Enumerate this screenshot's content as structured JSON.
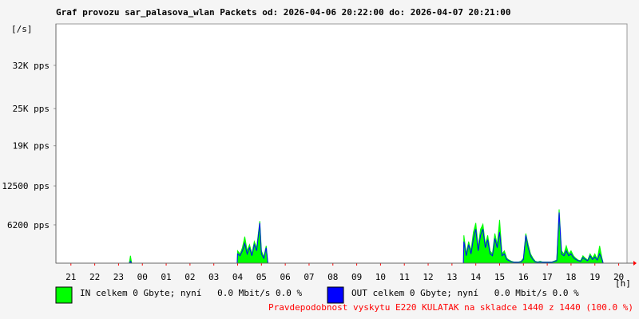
{
  "chart_data": {
    "type": "area-line",
    "title": "Graf provozu sar_palasova_wlan Packets od: 2026-04-06 20:22:00 do: 2026-04-07 20:21:00",
    "y_label": "[/s]",
    "x_label": "[h]",
    "footer": "Pravdepodobnost vyskytu E220 KULATAK na skladce 1440 z 1440 (100.0 %)",
    "xlim": [
      20.37,
      44.35
    ],
    "ylim": [
      0,
      38700
    ],
    "xticks": [
      21,
      22,
      23,
      {
        "value": 24,
        "label": "00"
      },
      {
        "value": 25,
        "label": "01"
      },
      {
        "value": 26,
        "label": "02"
      },
      {
        "value": 27,
        "label": "03"
      },
      {
        "value": 28,
        "label": "04"
      },
      {
        "value": 29,
        "label": "05"
      },
      {
        "value": 30,
        "label": "06"
      },
      {
        "value": 31,
        "label": "07"
      },
      {
        "value": 32,
        "label": "08"
      },
      {
        "value": 33,
        "label": "09"
      },
      {
        "value": 34,
        "label": "10"
      },
      {
        "value": 35,
        "label": "11"
      },
      {
        "value": 36,
        "label": "12"
      },
      {
        "value": 37,
        "label": "13"
      },
      {
        "value": 38,
        "label": "14"
      },
      {
        "value": 39,
        "label": "15"
      },
      {
        "value": 40,
        "label": "16"
      },
      {
        "value": 41,
        "label": "17"
      },
      {
        "value": 42,
        "label": "18"
      },
      {
        "value": 43,
        "label": "19"
      },
      {
        "value": 44,
        "label": "20"
      }
    ],
    "yticks": [
      {
        "value": 6200,
        "label": "6200 pps"
      },
      {
        "value": 12500,
        "label": "12500 pps"
      },
      {
        "value": 19000,
        "label": "19K pps"
      },
      {
        "value": 25000,
        "label": "25K pps"
      },
      {
        "value": 32000,
        "label": "32K pps"
      }
    ],
    "x": [
      20.37,
      23.45,
      23.5,
      23.55,
      27.98,
      28.0,
      28.1,
      28.2,
      28.3,
      28.4,
      28.5,
      28.6,
      28.7,
      28.8,
      28.93,
      29.0,
      29.1,
      29.2,
      29.27,
      37.48,
      37.5,
      37.6,
      37.7,
      37.8,
      37.9,
      38.0,
      38.1,
      38.2,
      38.3,
      38.4,
      38.5,
      38.6,
      38.7,
      38.8,
      38.9,
      39.0,
      39.1,
      39.2,
      39.3,
      39.4,
      39.5,
      39.6,
      39.7,
      39.8,
      39.9,
      40.0,
      40.1,
      40.2,
      40.3,
      40.4,
      40.5,
      40.6,
      40.7,
      40.8,
      41.2,
      41.4,
      41.5,
      41.6,
      41.7,
      41.8,
      41.9,
      42.0,
      42.1,
      42.2,
      42.3,
      42.4,
      42.5,
      42.6,
      42.7,
      42.8,
      42.9,
      43.0,
      43.1,
      43.2,
      43.3,
      43.35,
      44.35
    ],
    "series": [
      {
        "name": "IN celkem 0 Gbyte; nyní   0.0 Mbit/s 0.0 %",
        "color": "#00ff00",
        "style": "area",
        "values": [
          0,
          0,
          1200,
          0,
          0,
          2000,
          1500,
          2500,
          4300,
          2000,
          3000,
          1500,
          3500,
          2500,
          6800,
          2000,
          1000,
          2800,
          0,
          0,
          4500,
          1500,
          3500,
          2000,
          5000,
          6500,
          2500,
          5500,
          6300,
          3000,
          4500,
          2000,
          1500,
          4800,
          3000,
          7000,
          1500,
          2000,
          800,
          500,
          300,
          200,
          200,
          200,
          300,
          800,
          4800,
          3000,
          1500,
          800,
          300,
          200,
          300,
          200,
          200,
          500,
          8700,
          2000,
          1500,
          2800,
          1500,
          2000,
          1200,
          800,
          500,
          400,
          1200,
          800,
          500,
          1500,
          800,
          1500,
          600,
          2800,
          800,
          0,
          0
        ]
      },
      {
        "name": "OUT celkem 0 Gbyte; nyní   0.0 Mbit/s 0.0 %",
        "color": "#0000ff",
        "style": "line",
        "values": [
          0,
          0,
          300,
          0,
          0,
          1500,
          1200,
          2000,
          3200,
          1500,
          2500,
          1200,
          3000,
          2000,
          6500,
          1500,
          800,
          2500,
          0,
          0,
          3500,
          1200,
          3000,
          1500,
          4000,
          5500,
          2000,
          4500,
          5500,
          2500,
          3800,
          1500,
          1200,
          4000,
          2500,
          5000,
          1200,
          1500,
          600,
          400,
          200,
          150,
          150,
          150,
          200,
          600,
          4500,
          2500,
          1200,
          600,
          200,
          150,
          200,
          150,
          150,
          400,
          8200,
          1500,
          1200,
          2000,
          1200,
          1500,
          900,
          600,
          400,
          300,
          900,
          600,
          400,
          1200,
          600,
          1000,
          500,
          1500,
          600,
          0,
          0
        ]
      }
    ]
  }
}
